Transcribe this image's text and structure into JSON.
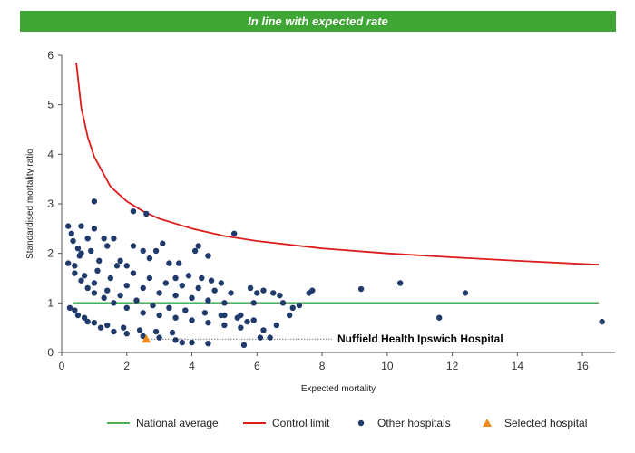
{
  "banner": {
    "text": "In line with expected rate",
    "color": "#3fa535"
  },
  "chart_data": {
    "type": "scatter",
    "title": "",
    "xlabel": "Expected mortality",
    "ylabel": "Standardised mortality ratio",
    "xlim": [
      0,
      17
    ],
    "ylim": [
      0,
      6
    ],
    "xticks": [
      0,
      2,
      4,
      6,
      8,
      10,
      12,
      14,
      16
    ],
    "yticks": [
      0,
      1,
      2,
      3,
      4,
      5,
      6
    ],
    "grid": false,
    "legend_position": "bottom",
    "colors": {
      "national_average": "#4caf50",
      "control_limit": "#dd1c1c",
      "other_hospitals": "#1f3a6b",
      "selected_hospital": "#f08a1c"
    },
    "national_average": {
      "name": "National average",
      "y": 1,
      "x_range": [
        0.35,
        16.5
      ]
    },
    "control_limit": {
      "name": "Control limit",
      "points": [
        [
          0.45,
          5.85
        ],
        [
          0.6,
          4.95
        ],
        [
          0.8,
          4.35
        ],
        [
          1.0,
          3.95
        ],
        [
          1.5,
          3.35
        ],
        [
          2.0,
          3.05
        ],
        [
          2.5,
          2.85
        ],
        [
          3.0,
          2.7
        ],
        [
          4.0,
          2.5
        ],
        [
          5.0,
          2.35
        ],
        [
          6.0,
          2.25
        ],
        [
          8.0,
          2.1
        ],
        [
          10.0,
          2.0
        ],
        [
          12.0,
          1.92
        ],
        [
          14.0,
          1.85
        ],
        [
          16.5,
          1.77
        ]
      ]
    },
    "other_hospitals": {
      "name": "Other hospitals",
      "points": [
        [
          0.2,
          2.55
        ],
        [
          0.3,
          2.4
        ],
        [
          0.35,
          2.25
        ],
        [
          0.6,
          2.55
        ],
        [
          0.8,
          2.3
        ],
        [
          1.0,
          3.05
        ],
        [
          1.0,
          2.5
        ],
        [
          0.5,
          2.1
        ],
        [
          0.6,
          2.0
        ],
        [
          0.55,
          1.95
        ],
        [
          1.3,
          2.3
        ],
        [
          1.6,
          2.3
        ],
        [
          2.2,
          2.85
        ],
        [
          2.6,
          2.8
        ],
        [
          3.1,
          2.2
        ],
        [
          4.2,
          2.15
        ],
        [
          4.5,
          1.95
        ],
        [
          5.3,
          2.4
        ],
        [
          0.9,
          2.05
        ],
        [
          1.15,
          1.85
        ],
        [
          1.4,
          2.15
        ],
        [
          2.2,
          2.15
        ],
        [
          2.5,
          2.05
        ],
        [
          2.9,
          2.05
        ],
        [
          1.8,
          1.85
        ],
        [
          2.0,
          1.75
        ],
        [
          2.7,
          1.9
        ],
        [
          3.3,
          1.8
        ],
        [
          3.6,
          1.8
        ],
        [
          4.1,
          2.05
        ],
        [
          4.5,
          1.95
        ],
        [
          0.2,
          1.8
        ],
        [
          0.4,
          1.6
        ],
        [
          0.6,
          1.45
        ],
        [
          0.8,
          1.3
        ],
        [
          1.0,
          1.2
        ],
        [
          1.3,
          1.1
        ],
        [
          1.6,
          1.0
        ],
        [
          2.0,
          0.9
        ],
        [
          2.5,
          0.8
        ],
        [
          3.0,
          0.75
        ],
        [
          3.5,
          0.7
        ],
        [
          4.0,
          0.65
        ],
        [
          4.5,
          0.6
        ],
        [
          5.0,
          0.55
        ],
        [
          5.5,
          0.5
        ],
        [
          0.4,
          1.75
        ],
        [
          0.7,
          1.55
        ],
        [
          1.0,
          1.4
        ],
        [
          1.4,
          1.25
        ],
        [
          1.8,
          1.15
        ],
        [
          2.3,
          1.05
        ],
        [
          2.8,
          0.95
        ],
        [
          3.3,
          0.9
        ],
        [
          3.8,
          0.85
        ],
        [
          4.4,
          0.8
        ],
        [
          4.9,
          0.75
        ],
        [
          5.4,
          0.7
        ],
        [
          5.9,
          0.65
        ],
        [
          0.25,
          0.9
        ],
        [
          0.5,
          0.75
        ],
        [
          0.8,
          0.62
        ],
        [
          1.2,
          0.5
        ],
        [
          1.6,
          0.42
        ],
        [
          2.0,
          0.38
        ],
        [
          2.5,
          0.33
        ],
        [
          3.0,
          0.3
        ],
        [
          3.5,
          0.25
        ],
        [
          3.7,
          0.2
        ],
        [
          4.0,
          0.2
        ],
        [
          4.5,
          0.18
        ],
        [
          0.4,
          0.85
        ],
        [
          0.7,
          0.7
        ],
        [
          1.0,
          0.6
        ],
        [
          1.4,
          0.55
        ],
        [
          1.9,
          0.5
        ],
        [
          2.4,
          0.45
        ],
        [
          2.9,
          0.42
        ],
        [
          3.4,
          0.4
        ],
        [
          1.1,
          1.65
        ],
        [
          1.5,
          1.5
        ],
        [
          2.0,
          1.35
        ],
        [
          2.5,
          1.3
        ],
        [
          3.0,
          1.2
        ],
        [
          3.5,
          1.15
        ],
        [
          4.0,
          1.1
        ],
        [
          4.5,
          1.05
        ],
        [
          5.0,
          1.0
        ],
        [
          1.7,
          1.75
        ],
        [
          2.2,
          1.6
        ],
        [
          2.7,
          1.5
        ],
        [
          3.2,
          1.4
        ],
        [
          3.7,
          1.35
        ],
        [
          4.2,
          1.3
        ],
        [
          4.7,
          1.25
        ],
        [
          5.2,
          1.2
        ],
        [
          3.5,
          1.5
        ],
        [
          3.9,
          1.55
        ],
        [
          4.3,
          1.5
        ],
        [
          4.6,
          1.45
        ],
        [
          4.9,
          1.4
        ],
        [
          5.0,
          0.75
        ],
        [
          5.5,
          0.75
        ],
        [
          5.7,
          0.62
        ],
        [
          6.1,
          0.3
        ],
        [
          6.4,
          0.3
        ],
        [
          5.6,
          0.15
        ],
        [
          6.2,
          0.45
        ],
        [
          6.6,
          0.55
        ],
        [
          5.8,
          1.3
        ],
        [
          5.9,
          1.0
        ],
        [
          6.0,
          1.2
        ],
        [
          6.2,
          1.25
        ],
        [
          6.5,
          1.2
        ],
        [
          6.7,
          1.15
        ],
        [
          6.8,
          1.0
        ],
        [
          7.0,
          0.75
        ],
        [
          7.1,
          0.9
        ],
        [
          7.6,
          1.2
        ],
        [
          7.7,
          1.25
        ],
        [
          7.3,
          0.95
        ],
        [
          9.2,
          1.28
        ],
        [
          10.4,
          1.4
        ],
        [
          11.6,
          0.7
        ],
        [
          12.4,
          1.2
        ],
        [
          16.6,
          0.62
        ]
      ]
    },
    "selected_hospital": {
      "name": "Selected hospital",
      "points": [
        [
          2.6,
          0.27
        ]
      ]
    },
    "annotation": {
      "text": "Nuffield Health Ipswich Hospital",
      "x": 2.6,
      "y": 0.27
    }
  }
}
